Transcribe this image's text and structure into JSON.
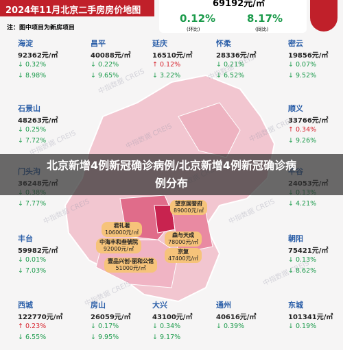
{
  "header": {
    "title": "2024年11月北京二手房房价地图",
    "avg_price": "69192元/㎡",
    "mom": "0.12%",
    "mom_label": "(环比)",
    "yoy": "8.17%",
    "yoy_label": "(同比)",
    "note": "注：图中项目为新房项目"
  },
  "districts": [
    {
      "name": "海淀",
      "price": "92362元/㎡",
      "mom": "↓ 0.32%",
      "yoy": "↓ 8.98%"
    },
    {
      "name": "昌平",
      "price": "40088元/㎡",
      "mom": "↓ 0.22%",
      "yoy": "↓ 9.65%"
    },
    {
      "name": "延庆",
      "price": "16510元/㎡",
      "mom": "↑ 0.12%",
      "yoy": "↓ 3.22%"
    },
    {
      "name": "怀柔",
      "price": "28336元/㎡",
      "mom": "↓ 0.21%",
      "yoy": "↓ 6.52%"
    },
    {
      "name": "密云",
      "price": "19856元/㎡",
      "mom": "↓ 0.07%",
      "yoy": "↓ 9.52%"
    },
    {
      "name": "石景山",
      "price": "48263元/㎡",
      "mom": "↓ 0.25%",
      "yoy": "↓ 7.72%"
    },
    {
      "name": "顺义",
      "price": "33766元/㎡",
      "mom": "↑ 0.34%",
      "yoy": "↓ 9.26%"
    },
    {
      "name": "门头沟",
      "price": "36248元/㎡",
      "mom": "↓ 0.38%",
      "yoy": "↓ 7.77%"
    },
    {
      "name": "平谷",
      "price": "24053元/㎡",
      "mom": "↓ 0.13%",
      "yoy": "↓ 4.21%"
    },
    {
      "name": "丰台",
      "price": "59982元/㎡",
      "mom": "↓ 0.01%",
      "yoy": "↓ 7.03%"
    },
    {
      "name": "朝阳",
      "price": "75421元/㎡",
      "mom": "↓ 0.13%",
      "yoy": "↓ 8.62%"
    },
    {
      "name": "西城",
      "price": "122770元/㎡",
      "mom": "↑ 0.23%",
      "yoy": "↓ 6.55%"
    },
    {
      "name": "房山",
      "price": "26059元/㎡",
      "mom": "↓ 0.17%",
      "yoy": "↓ 9.95%"
    },
    {
      "name": "大兴",
      "price": "43100元/㎡",
      "mom": "↓ 0.34%",
      "yoy": "↓ 9.17%"
    },
    {
      "name": "通州",
      "price": "40616元/㎡",
      "mom": "↓ 0.39%"
    },
    {
      "name": "东城",
      "price": "101341元/㎡",
      "mom": "↓ 0.19%"
    }
  ],
  "projects": [
    {
      "name": "望京国誉府",
      "price": "89000元/㎡"
    },
    {
      "name": "君礼著",
      "price": "106000元/㎡"
    },
    {
      "name": "中海丰和叁號院",
      "price": "92000元/㎡"
    },
    {
      "name": "森与天成",
      "price": "78000元/㎡"
    },
    {
      "name": "京复",
      "price": "47400元/㎡"
    },
    {
      "name": "壹品兴创·丽和公馆",
      "price": "51000元/㎡"
    }
  ],
  "watermark": "中指数据 CREIS",
  "banner": "北京新增4例新冠确诊病例/北京新增4例新冠确诊病例分布"
}
